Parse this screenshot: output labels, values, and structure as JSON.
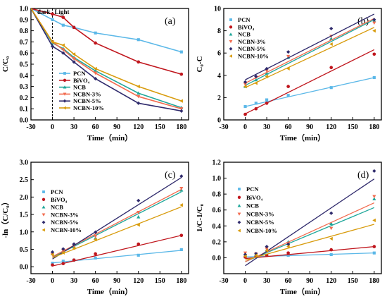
{
  "series_styles": [
    {
      "name": "PCN",
      "color": "#5bb8e8",
      "marker": "square"
    },
    {
      "name": "BiVO₄",
      "color": "#c0161d",
      "marker": "circle"
    },
    {
      "name": "NCB",
      "color": "#1fa79a",
      "marker": "triangle-up"
    },
    {
      "name": "NCBN-3%",
      "color": "#f26b4f",
      "marker": "triangle-down"
    },
    {
      "name": "NCBN-5%",
      "color": "#2f2a6c",
      "marker": "diamond"
    },
    {
      "name": "NCBN-10%",
      "color": "#d89b0c",
      "marker": "triangle-left"
    }
  ],
  "chart_data": [
    {
      "type": "line",
      "panel_label": "(a)",
      "xlabel": "Time（min）",
      "ylabel": "C/C₀",
      "xlim": [
        -30,
        190
      ],
      "ylim": [
        0,
        1.0
      ],
      "x_ticks": [
        -30,
        0,
        30,
        60,
        90,
        120,
        150,
        180
      ],
      "y_ticks": [
        0.0,
        0.1,
        0.2,
        0.3,
        0.4,
        0.5,
        0.6,
        0.7,
        0.8,
        0.9,
        1.0
      ],
      "annotations": {
        "dark": "dark",
        "light": "Light"
      },
      "divider_x": 0,
      "legend_position": "bottom-left",
      "series": [
        {
          "name": "PCN",
          "x": [
            -30,
            0,
            15,
            30,
            60,
            120,
            180
          ],
          "y": [
            1.0,
            0.9,
            0.85,
            0.83,
            0.78,
            0.72,
            0.61
          ]
        },
        {
          "name": "BiVO₄",
          "x": [
            -30,
            0,
            15,
            30,
            60,
            120,
            180
          ],
          "y": [
            1.0,
            0.95,
            0.92,
            0.83,
            0.69,
            0.52,
            0.41
          ]
        },
        {
          "name": "NCB",
          "x": [
            -30,
            0,
            15,
            30,
            60,
            120,
            180
          ],
          "y": [
            1.0,
            0.69,
            0.64,
            0.56,
            0.44,
            0.24,
            0.11
          ]
        },
        {
          "name": "NCBN-3%",
          "x": [
            -30,
            0,
            15,
            30,
            60,
            120,
            180
          ],
          "y": [
            1.0,
            0.7,
            0.63,
            0.55,
            0.42,
            0.21,
            0.1
          ]
        },
        {
          "name": "NCBN-5%",
          "x": [
            -30,
            0,
            15,
            30,
            60,
            120,
            180
          ],
          "y": [
            1.0,
            0.66,
            0.6,
            0.52,
            0.37,
            0.15,
            0.08
          ]
        },
        {
          "name": "NCBN-10%",
          "x": [
            -30,
            0,
            15,
            30,
            60,
            120,
            180
          ],
          "y": [
            1.0,
            0.7,
            0.67,
            0.59,
            0.46,
            0.3,
            0.17
          ]
        }
      ]
    },
    {
      "type": "scatter",
      "panel_label": "(b)",
      "xlabel": "Time（min）",
      "ylabel": "C₀-C",
      "xlim": [
        -30,
        190
      ],
      "ylim": [
        0,
        10
      ],
      "x_ticks": [
        -30,
        0,
        30,
        60,
        90,
        120,
        150,
        180
      ],
      "y_ticks": [
        0,
        2,
        4,
        6,
        8,
        10
      ],
      "legend_position": "top-left",
      "series": [
        {
          "name": "PCN",
          "x": [
            0,
            15,
            30,
            60,
            120,
            180
          ],
          "y": [
            1.2,
            1.5,
            1.8,
            2.2,
            2.9,
            3.8
          ],
          "fit": [
            1.2,
            3.8
          ]
        },
        {
          "name": "BiVO₄",
          "x": [
            0,
            15,
            30,
            60,
            120,
            180
          ],
          "y": [
            0.5,
            1.0,
            1.5,
            3.0,
            4.7,
            5.9
          ],
          "fit": [
            0.55,
            6.3
          ]
        },
        {
          "name": "NCB",
          "x": [
            0,
            15,
            30,
            60,
            120,
            180
          ],
          "y": [
            3.0,
            3.6,
            4.2,
            5.6,
            7.3,
            8.9
          ],
          "fit": [
            3.1,
            9.0
          ]
        },
        {
          "name": "NCBN-3%",
          "x": [
            0,
            15,
            30,
            60,
            120,
            180
          ],
          "y": [
            3.2,
            3.8,
            4.4,
            5.7,
            7.5,
            8.7
          ],
          "fit": [
            3.3,
            9.1
          ]
        },
        {
          "name": "NCBN-5%",
          "x": [
            0,
            15,
            30,
            60,
            120,
            180
          ],
          "y": [
            3.4,
            3.9,
            4.6,
            6.1,
            8.2,
            9.0
          ],
          "fit": [
            3.6,
            9.5
          ]
        },
        {
          "name": "NCBN-10%",
          "x": [
            0,
            15,
            30,
            60,
            120,
            180
          ],
          "y": [
            3.0,
            3.3,
            3.9,
            4.6,
            6.8,
            8.0
          ],
          "fit": [
            2.9,
            8.3
          ]
        }
      ]
    },
    {
      "type": "scatter",
      "panel_label": "(c)",
      "xlabel": "Time（min）",
      "ylabel": "-ln（C/C₀）",
      "xlim": [
        -30,
        190
      ],
      "ylim": [
        -0.2,
        3.0
      ],
      "x_ticks": [
        -30,
        0,
        30,
        60,
        90,
        120,
        150,
        180
      ],
      "y_ticks": [
        0.0,
        0.5,
        1.0,
        1.5,
        2.0,
        2.5,
        3.0
      ],
      "legend_position": "top-left",
      "series": [
        {
          "name": "PCN",
          "x": [
            0,
            15,
            30,
            60,
            120,
            180
          ],
          "y": [
            0.1,
            0.16,
            0.19,
            0.25,
            0.33,
            0.49
          ],
          "fit": [
            0.11,
            0.47
          ]
        },
        {
          "name": "BiVO₄",
          "x": [
            0,
            15,
            30,
            60,
            120,
            180
          ],
          "y": [
            0.05,
            0.09,
            0.19,
            0.37,
            0.65,
            0.9
          ],
          "fit": [
            0.02,
            0.9
          ]
        },
        {
          "name": "NCB",
          "x": [
            0,
            15,
            30,
            60,
            120,
            180
          ],
          "y": [
            0.37,
            0.45,
            0.58,
            0.82,
            1.43,
            2.2
          ],
          "fit": [
            0.27,
            2.15
          ]
        },
        {
          "name": "NCBN-3%",
          "x": [
            0,
            15,
            30,
            60,
            120,
            180
          ],
          "y": [
            0.35,
            0.46,
            0.6,
            0.87,
            1.56,
            2.25
          ],
          "fit": [
            0.29,
            2.22
          ]
        },
        {
          "name": "NCBN-5%",
          "x": [
            0,
            15,
            30,
            60,
            120,
            180
          ],
          "y": [
            0.42,
            0.51,
            0.65,
            0.99,
            1.9,
            2.6
          ],
          "fit": [
            0.22,
            2.56
          ]
        },
        {
          "name": "NCBN-10%",
          "x": [
            0,
            15,
            30,
            60,
            120,
            180
          ],
          "y": [
            0.35,
            0.4,
            0.53,
            0.78,
            1.2,
            1.77
          ],
          "fit": [
            0.26,
            1.72
          ]
        }
      ]
    },
    {
      "type": "scatter",
      "panel_label": "(d)",
      "xlabel": "Time（min）",
      "ylabel": "1/C-1/C₀",
      "xlim": [
        -30,
        190
      ],
      "ylim": [
        -0.2,
        1.2
      ],
      "x_ticks": [
        -30,
        0,
        30,
        60,
        90,
        120,
        150,
        180
      ],
      "y_ticks": [
        0.0,
        0.2,
        0.4,
        0.6,
        0.8,
        1.0,
        1.2
      ],
      "legend_position": "top-left",
      "series": [
        {
          "name": "PCN",
          "x": [
            0,
            15,
            30,
            60,
            120,
            180
          ],
          "y": [
            0.01,
            0.02,
            0.03,
            0.03,
            0.04,
            0.06
          ],
          "fit": [
            0.01,
            0.06
          ]
        },
        {
          "name": "BiVO₄",
          "x": [
            0,
            15,
            30,
            60,
            120,
            180
          ],
          "y": [
            0.01,
            0.02,
            0.03,
            0.06,
            0.1,
            0.14
          ],
          "fit": [
            -0.01,
            0.14
          ]
        },
        {
          "name": "NCB",
          "x": [
            0,
            15,
            30,
            60,
            120,
            180
          ],
          "y": [
            0.05,
            0.04,
            0.1,
            0.2,
            0.43,
            0.74
          ],
          "fit": [
            -0.05,
            0.63
          ]
        },
        {
          "name": "NCBN-3%",
          "x": [
            0,
            15,
            30,
            60,
            120,
            180
          ],
          "y": [
            0.06,
            0.05,
            0.11,
            0.18,
            0.37,
            0.77
          ],
          "fit": [
            -0.05,
            0.69
          ]
        },
        {
          "name": "NCBN-5%",
          "x": [
            0,
            15,
            30,
            60,
            120,
            180
          ],
          "y": [
            0.04,
            0.05,
            0.14,
            0.17,
            0.56,
            1.09
          ],
          "fit": [
            -0.1,
            0.99
          ]
        },
        {
          "name": "NCBN-10%",
          "x": [
            0,
            15,
            30,
            60,
            120,
            180
          ],
          "y": [
            0.02,
            0.03,
            0.09,
            0.14,
            0.24,
            0.47
          ],
          "fit": [
            -0.03,
            0.42
          ]
        }
      ]
    }
  ]
}
